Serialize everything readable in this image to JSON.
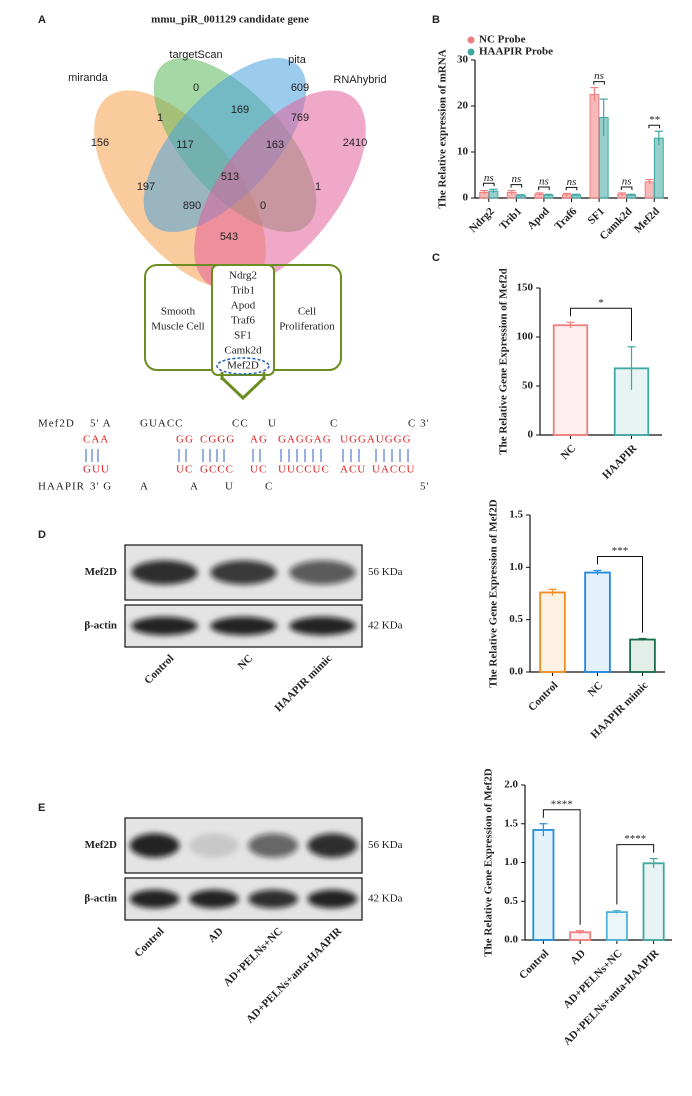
{
  "panel_labels": [
    "A",
    "B",
    "C",
    "D",
    "E"
  ],
  "venn": {
    "title": "mmu_piR_001129 candidate gene",
    "sets": [
      {
        "name": "miranda",
        "color": "#f5a04a"
      },
      {
        "name": "targetScan",
        "color": "#5cb85c"
      },
      {
        "name": "pita",
        "color": "#4aa3df"
      },
      {
        "name": "RNAhybrid",
        "color": "#e2609a"
      }
    ],
    "counts": [
      0,
      609,
      156,
      1,
      169,
      769,
      2410,
      117,
      163,
      513,
      197,
      1,
      890,
      0,
      543
    ]
  },
  "diagram": {
    "left": [
      "Smooth",
      "Muscle Cell"
    ],
    "right": [
      "Cell",
      "Proliferation"
    ],
    "genes": [
      "Ndrg2",
      "Trib1",
      "Apod",
      "Traf6",
      "SF1",
      "Camk2d",
      "Mef2D"
    ]
  },
  "alignment": {
    "top": [
      "Mef2D",
      "5' A",
      "GUACC",
      "CC",
      "U",
      "C",
      "C 3'"
    ],
    "top_paired": [
      "CAA",
      "GG",
      "CGGG",
      "AG",
      "GAGGAG",
      "UGGAUGGG"
    ],
    "bottom_paired": [
      "GUU",
      "UC",
      "GCCC",
      "UC",
      "UUCCUC",
      "ACU",
      "UACCU"
    ],
    "bottom": [
      "HAAPIR",
      "3' G",
      "A",
      "A",
      "U",
      "C",
      "5'"
    ]
  },
  "blot_d": {
    "rows": [
      "Mef2D",
      "β-actin"
    ],
    "sizes": [
      "56 KDa",
      "42 KDa"
    ],
    "lanes": [
      "Control",
      "NC",
      "HAAPIR mimic"
    ]
  },
  "blot_e": {
    "rows": [
      "Mef2D",
      "β-actin"
    ],
    "sizes": [
      "56 KDa",
      "42 KDa"
    ],
    "lanes": [
      "Control",
      "AD",
      "AD+PELNs+NC",
      "AD+PELNs+anta-HAAPIR"
    ]
  },
  "chart_data": [
    {
      "type": "bar",
      "ylabel": "The Relative expression of mRNA",
      "categories": [
        "Ndrg2",
        "Trib1",
        "Apod",
        "Traf6",
        "SF1",
        "Camk2d",
        "Mef2d"
      ],
      "series": [
        {
          "name": "NC Probe",
          "color": "#f07f7f",
          "values": [
            1.2,
            1.2,
            0.8,
            0.7,
            22.5,
            0.8,
            3.5
          ],
          "errors": [
            0.4,
            0.4,
            0.3,
            0.3,
            1.5,
            0.3,
            0.5
          ]
        },
        {
          "name": "HAAPIR Probe",
          "color": "#3fa8a0",
          "values": [
            1.5,
            0.5,
            0.6,
            0.6,
            17.5,
            0.6,
            13
          ],
          "errors": [
            0.4,
            0.2,
            0.2,
            0.2,
            4,
            0.2,
            1.5
          ]
        }
      ],
      "significance": [
        "ns",
        "ns",
        "ns",
        "ns",
        "ns",
        "ns",
        "**"
      ],
      "ylim": [
        0,
        30
      ],
      "yticks": [
        0,
        10,
        20,
        30
      ],
      "legend": "top-left"
    },
    {
      "type": "bar",
      "ylabel": "The Relative Gene Expression of Mef2d",
      "categories": [
        "NC",
        "HAAPIR"
      ],
      "colors": [
        "#f07f7f",
        "#3fa8a0"
      ],
      "values": [
        112,
        68
      ],
      "errors": [
        3,
        22
      ],
      "comparisons": [
        {
          "text": "*",
          "between": [
            "NC",
            "HAAPIR"
          ]
        }
      ],
      "ylim": [
        0,
        150
      ],
      "yticks": [
        0,
        50,
        100,
        150
      ]
    },
    {
      "type": "bar",
      "ylabel": "The Relative Gene Expression of Mef2D",
      "categories": [
        "Control",
        "NC",
        "HAAPIR mimic"
      ],
      "colors": [
        "#f28c1e",
        "#1e88e5",
        "#1b6b4a"
      ],
      "values": [
        0.76,
        0.95,
        0.31
      ],
      "errors": [
        0.03,
        0.02,
        0.01
      ],
      "comparisons": [
        {
          "text": "***",
          "between": [
            "NC",
            "HAAPIR mimic"
          ]
        }
      ],
      "ylim": [
        0,
        1.5
      ],
      "yticks": [
        {
          "value": 0,
          "label": "0.0"
        },
        0.5,
        {
          "value": 1,
          "label": "1.0"
        },
        1.5
      ]
    },
    {
      "type": "bar",
      "ylabel": "The Relative Gene Expression of Mef2D",
      "categories": [
        "Control",
        "AD",
        "AD+PELNs+NC",
        "AD+PELNs+anta-HAAPIR"
      ],
      "colors": [
        "#1e90d6",
        "#f07f7f",
        "#4fb3d9",
        "#3fa8a0"
      ],
      "values": [
        1.42,
        0.1,
        0.36,
        0.99
      ],
      "errors": [
        0.08,
        0.02,
        0.02,
        0.06
      ],
      "comparisons": [
        {
          "text": "****",
          "between": [
            "Control",
            "AD"
          ]
        },
        {
          "text": "****",
          "between": [
            "AD+PELNs+NC",
            "AD+PELNs+anta-HAAPIR"
          ]
        }
      ],
      "ylim": [
        0,
        2.0
      ],
      "yticks": [
        {
          "value": 0,
          "label": "0.0"
        },
        0.5,
        {
          "value": 1,
          "label": "1.0"
        },
        1.5,
        {
          "value": 2,
          "label": "2.0"
        }
      ]
    }
  ]
}
